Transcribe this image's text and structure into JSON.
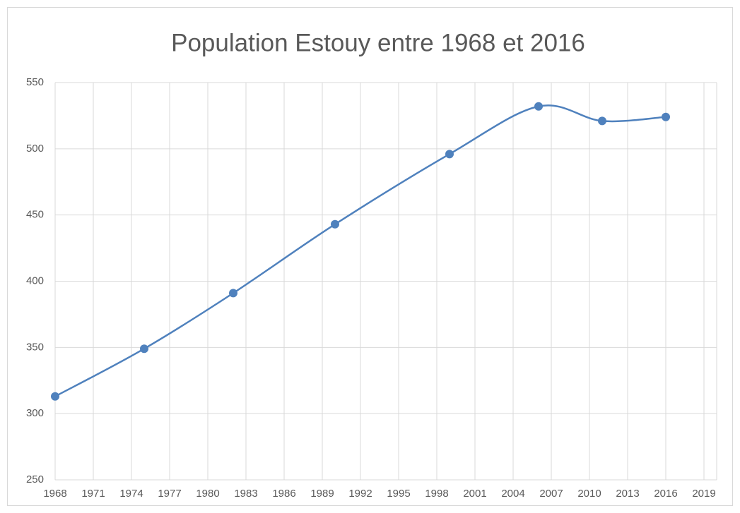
{
  "chart_data": {
    "type": "line",
    "title": "Population Estouy  entre 1968 et 2016",
    "x": [
      1968,
      1975,
      1982,
      1990,
      1999,
      2006,
      2011,
      2016
    ],
    "values": [
      313,
      349,
      391,
      443,
      496,
      532,
      521,
      524
    ],
    "color": "#4f81bd",
    "smooth": true,
    "xlim": [
      1968,
      2020
    ],
    "xticks": [
      1968,
      1971,
      1974,
      1977,
      1980,
      1983,
      1986,
      1989,
      1992,
      1995,
      1998,
      2001,
      2004,
      2007,
      2010,
      2013,
      2016,
      2019
    ],
    "ylim": [
      250,
      550
    ],
    "yticks": [
      250,
      300,
      350,
      400,
      450,
      500,
      550
    ],
    "grid": true
  }
}
